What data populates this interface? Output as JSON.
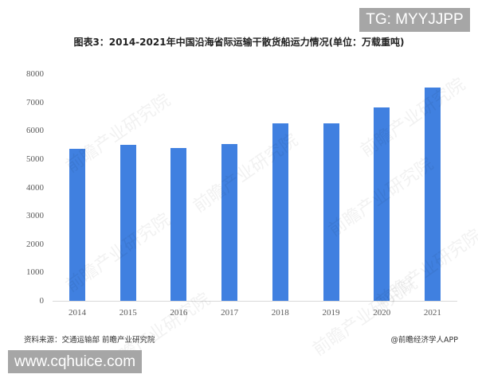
{
  "header": {
    "title": "图表3：2014-2021年中国沿海省际运输干散货船运力情况(单位：万载重吨)"
  },
  "overlays": {
    "top_right_badge": "TG: MYYJJPP",
    "bottom_left_badge": "www.cqhuice.com",
    "watermark": "前瞻产业研究院"
  },
  "footer": {
    "source": "资料来源：交通运输部 前瞻产业研究院",
    "credit": "@前瞻经济学人APP"
  },
  "colors": {
    "bar": "#4080e0",
    "axis": "#d9d9d9",
    "badge": "#a6a6a6"
  },
  "chart_data": {
    "type": "bar",
    "title": "图表3：2014-2021年中国沿海省际运输干散货船运力情况(单位：万载重吨)",
    "xlabel": "",
    "ylabel": "万载重吨",
    "categories": [
      "2014",
      "2015",
      "2016",
      "2017",
      "2018",
      "2019",
      "2020",
      "2021"
    ],
    "values": [
      5360,
      5490,
      5380,
      5530,
      6260,
      6260,
      6820,
      7530
    ],
    "ylim": [
      0,
      8000
    ],
    "yticks": [
      "0",
      "1000",
      "2000",
      "3000",
      "4000",
      "5000",
      "6000",
      "7000",
      "8000"
    ],
    "grid": false,
    "legend": null
  }
}
